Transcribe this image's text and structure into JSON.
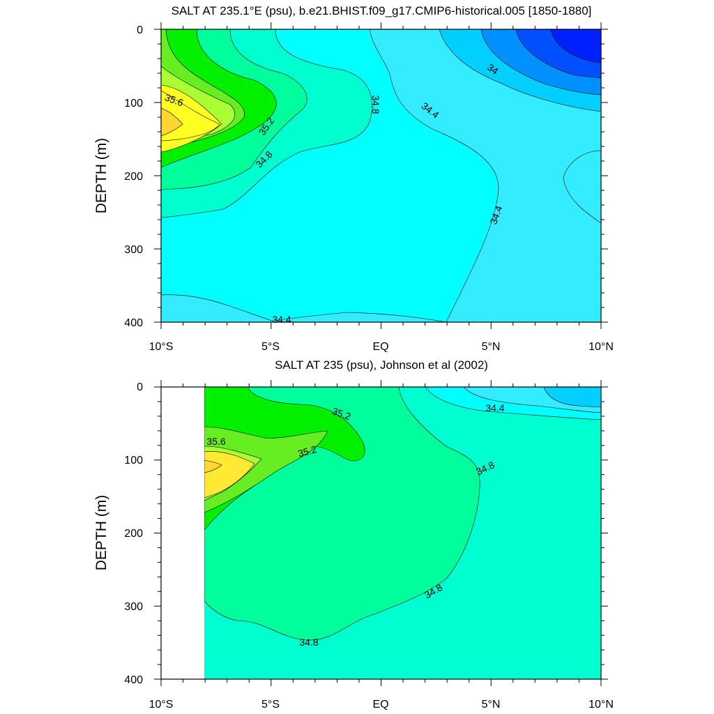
{
  "chart_data": [
    {
      "type": "contour",
      "title": "SALT AT 235.1°E (psu), b.e21.BHIST.f09_g17.CMIP6-historical.005 [1850-1880]",
      "ylabel": "DEPTH (m)",
      "xlabel": "",
      "x_tick_labels": [
        "10°S",
        "5°S",
        "EQ",
        "5°N",
        "10°N"
      ],
      "y_tick_labels": [
        "0",
        "100",
        "200",
        "300",
        "400"
      ],
      "xlim": [
        -10,
        10
      ],
      "ylim": [
        400,
        0
      ],
      "contour_labels": [
        "35.6",
        "35.2",
        "34.8",
        "34.8",
        "34.4",
        "34",
        "34.4",
        "34.4"
      ],
      "colors": {
        "c33_8": "#0020ff",
        "c34_0": "#0050ff",
        "c34_2": "#0090ff",
        "c34_4": "#00cfff",
        "c34_6": "#33ecff",
        "c34_8": "#00ffff",
        "c35_0": "#00ffd0",
        "c35_2": "#00ff9c",
        "c35_4": "#00f000",
        "c35_6": "#66ee22",
        "c35_8": "#aaff33",
        "c36_0": "#ffff22",
        "c36_2": "#ffd632"
      }
    },
    {
      "type": "contour",
      "title": "SALT AT 235 (psu), Johnson et al (2002)",
      "ylabel": "DEPTH (m)",
      "xlabel": "",
      "x_tick_labels": [
        "10°S",
        "5°S",
        "EQ",
        "5°N",
        "10°N"
      ],
      "y_tick_labels": [
        "0",
        "100",
        "200",
        "300",
        "400"
      ],
      "xlim": [
        -10,
        10
      ],
      "ylim": [
        400,
        0
      ],
      "contour_labels": [
        "35.6",
        "35.2",
        "35.2",
        "34.4",
        "34.8",
        "34.8",
        "34.8"
      ]
    }
  ]
}
